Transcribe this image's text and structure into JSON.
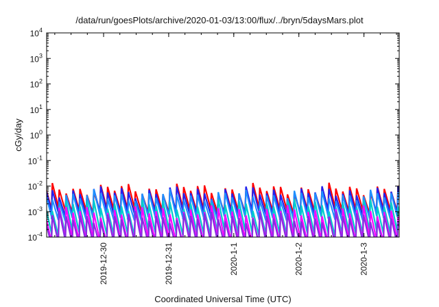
{
  "chart_data": {
    "type": "line",
    "title": "/data/run/goesPlots/archive/2020-01-03/13:00/flux/../bryn/5daysMars.plot",
    "xlabel": "Coordinated Universal Time (UTC)",
    "ylabel": "cGy/day",
    "y_scale": "log",
    "ylim": [
      0.0001,
      10000
    ],
    "xlim": [
      "2019-12-29 03:00",
      "2020-01-03 13:00"
    ],
    "grid": false,
    "legend": "none",
    "y_ticks": [
      {
        "value": 0.0001,
        "base": "10",
        "exp": "-4"
      },
      {
        "value": 0.001,
        "base": "10",
        "exp": "-3"
      },
      {
        "value": 0.01,
        "base": "10",
        "exp": "-2"
      },
      {
        "value": 0.1,
        "base": "10",
        "exp": "-1"
      },
      {
        "value": 1,
        "base": "10",
        "exp": "0"
      },
      {
        "value": 10,
        "base": "10",
        "exp": "1"
      },
      {
        "value": 100,
        "base": "10",
        "exp": "2"
      },
      {
        "value": 1000,
        "base": "10",
        "exp": "3"
      },
      {
        "value": 10000,
        "base": "10",
        "exp": "4"
      }
    ],
    "x_ticks": [
      {
        "label": "2019-12-30",
        "time": "2019-12-30 00:00"
      },
      {
        "label": "2019-12-31",
        "time": "2019-12-31 00:00"
      },
      {
        "label": "2020-1-1",
        "time": "2020-01-01 00:00"
      },
      {
        "label": "2020-1-2",
        "time": "2020-01-02 00:00"
      },
      {
        "label": "2020-1-3",
        "time": "2020-01-03 00:00"
      }
    ],
    "sawtooth_period_hours": 2.55,
    "series": [
      {
        "color": "#ff0000",
        "peak": 0.0075,
        "trough": 0.0012
      },
      {
        "color": "#2222ee",
        "peak": 0.0058,
        "trough": 0.0009
      },
      {
        "color": "#1e90ff",
        "peak": 0.0042,
        "trough": 0.0006
      },
      {
        "color": "#00cccc",
        "peak": 0.0018,
        "trough": 0.00016
      },
      {
        "color": "#ff00ff",
        "peak": 0.001,
        "trough": 8e-05
      },
      {
        "color": "#8a2be2",
        "peak": 0.0006,
        "trough": 6e-05
      }
    ]
  }
}
